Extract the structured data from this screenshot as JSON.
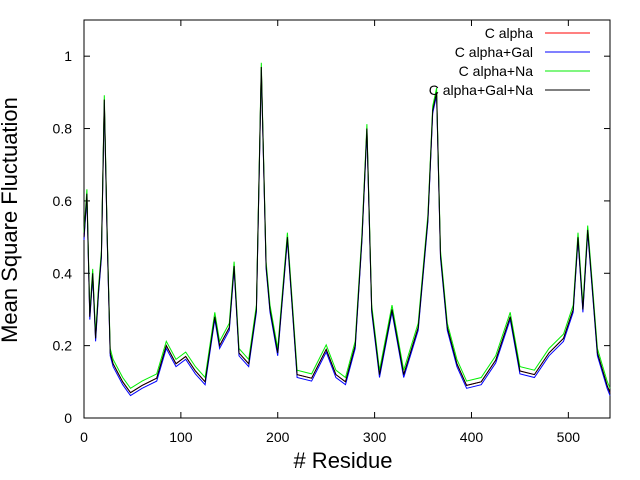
{
  "chart_data": {
    "type": "line",
    "title": "",
    "xlabel": "# Residue",
    "ylabel": "Mean Square Fluctuation",
    "xlim": [
      0,
      543
    ],
    "ylim": [
      0,
      1.1
    ],
    "xticks": [
      0,
      100,
      200,
      300,
      400,
      500
    ],
    "yticks": [
      0,
      0.2,
      0.4,
      0.6,
      0.8,
      1
    ],
    "grid": false,
    "legend_position": "top-right",
    "series": [
      {
        "name": "C alpha",
        "color": "#ff0000"
      },
      {
        "name": "C alpha+Gal",
        "color": "#0000ff"
      },
      {
        "name": "C alpha+Na",
        "color": "#00ee00"
      },
      {
        "name": "C alpha+Gal+Na",
        "color": "#000000"
      }
    ],
    "x": [
      0,
      3,
      6,
      9,
      12,
      15,
      18,
      21,
      24,
      27,
      30,
      40,
      48,
      60,
      75,
      85,
      95,
      105,
      115,
      125,
      135,
      140,
      150,
      155,
      160,
      170,
      178,
      183,
      188,
      192,
      200,
      210,
      220,
      235,
      250,
      260,
      270,
      280,
      287,
      292,
      297,
      305,
      318,
      330,
      345,
      355,
      360,
      364,
      368,
      375,
      385,
      395,
      410,
      425,
      440,
      450,
      465,
      480,
      495,
      505,
      510,
      515,
      520,
      525,
      530,
      540,
      543
    ],
    "base_values": [
      0.5,
      0.62,
      0.28,
      0.4,
      0.22,
      0.35,
      0.45,
      0.88,
      0.5,
      0.18,
      0.15,
      0.1,
      0.07,
      0.09,
      0.11,
      0.2,
      0.15,
      0.17,
      0.13,
      0.1,
      0.28,
      0.2,
      0.25,
      0.42,
      0.18,
      0.15,
      0.3,
      0.97,
      0.42,
      0.3,
      0.18,
      0.5,
      0.12,
      0.11,
      0.19,
      0.12,
      0.1,
      0.2,
      0.5,
      0.8,
      0.3,
      0.12,
      0.3,
      0.12,
      0.25,
      0.55,
      0.85,
      0.9,
      0.45,
      0.25,
      0.15,
      0.09,
      0.1,
      0.16,
      0.28,
      0.13,
      0.12,
      0.18,
      0.22,
      0.3,
      0.5,
      0.3,
      0.52,
      0.35,
      0.18,
      0.09,
      0.07
    ]
  },
  "legend": [
    {
      "label": "C alpha",
      "color": "#ff0000"
    },
    {
      "label": "C alpha+Gal",
      "color": "#0000ff"
    },
    {
      "label": "C alpha+Na",
      "color": "#00ee00"
    },
    {
      "label": "C alpha+Gal+Na",
      "color": "#000000"
    }
  ]
}
